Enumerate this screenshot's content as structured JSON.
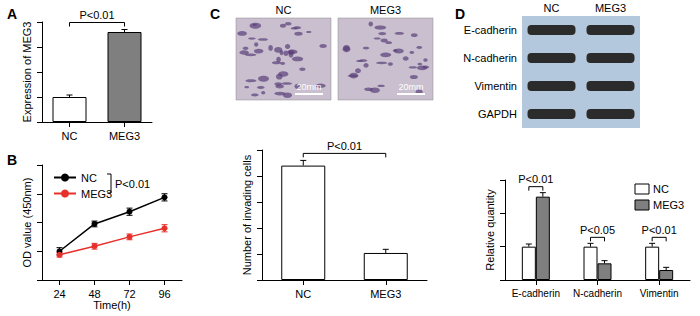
{
  "chart_data": [
    {
      "type": "bar",
      "title": "A",
      "y_label": "Expression of MEG3",
      "categories": [
        "NC",
        "MEG3"
      ],
      "values": [
        1.0,
        3.6
      ],
      "errors": [
        0.08,
        0.1
      ],
      "colors": [
        "#ffffff",
        "#7f7f7f"
      ],
      "ylim": [
        0,
        4
      ],
      "yticks": [
        0,
        1,
        2,
        3,
        4
      ],
      "tick_labels": "x",
      "grid": false,
      "annotations": [
        {
          "text": "P<0.01",
          "between": [
            "NC",
            "MEG3"
          ]
        }
      ]
    },
    {
      "type": "line",
      "title": "B",
      "x_label": "Time(h)",
      "y_label": "OD value (450nm)",
      "x": [
        24,
        48,
        72,
        96
      ],
      "series": [
        {
          "name": "NC",
          "color": "#000000",
          "marker": "circle",
          "values": [
            0.4,
            0.78,
            0.95,
            1.15
          ],
          "errors": [
            0.05,
            0.04,
            0.05,
            0.05
          ]
        },
        {
          "name": "MEG3",
          "color": "#e8302a",
          "marker": "circle",
          "values": [
            0.35,
            0.47,
            0.6,
            0.72
          ],
          "errors": [
            0.03,
            0.04,
            0.04,
            0.05
          ]
        }
      ],
      "xlim": [
        12,
        108
      ],
      "xticks": [
        24,
        48,
        72,
        96
      ],
      "ylim": [
        0,
        1.6
      ],
      "yticks": [
        0,
        0.4,
        0.8,
        1.2,
        1.6
      ],
      "tick_labels": "x",
      "grid": false,
      "legend": "upper left",
      "annotations": [
        {
          "text": "P<0.01",
          "between": [
            "NC",
            "MEG3"
          ]
        }
      ]
    },
    {
      "type": "bar",
      "title": "C",
      "y_label": "Number of invading cells",
      "categories": [
        "NC",
        "MEG3"
      ],
      "values": [
        220,
        52
      ],
      "errors": [
        10,
        7
      ],
      "colors": [
        "#ffffff",
        "#ffffff"
      ],
      "ylim": [
        0,
        250
      ],
      "yticks": [
        0,
        50,
        100,
        150,
        200,
        250
      ],
      "tick_labels": "x",
      "grid": false,
      "annotations": [
        {
          "text": "P<0.01",
          "between": [
            "NC",
            "MEG3"
          ]
        }
      ],
      "micrographs": {
        "labels": [
          "NC",
          "MEG3"
        ],
        "scale_bar": "20mm"
      }
    },
    {
      "type": "bar",
      "title": "D",
      "y_label": "Relative quantity",
      "categories": [
        "E-cadherin",
        "N-cadherin",
        "Vimentin"
      ],
      "series": [
        {
          "name": "NC",
          "color": "#ffffff",
          "values": [
            1.0,
            1.0,
            1.0
          ],
          "errors": [
            0.08,
            0.1,
            0.1
          ]
        },
        {
          "name": "MEG3",
          "color": "#7f7f7f",
          "values": [
            2.5,
            0.5,
            0.3
          ],
          "errors": [
            0.12,
            0.08,
            0.08
          ]
        }
      ],
      "ylim": [
        0,
        3
      ],
      "yticks": [
        0,
        1,
        2,
        3
      ],
      "tick_labels": "x",
      "grid": false,
      "legend": "upper right",
      "annotations": [
        {
          "text": "P<0.01",
          "category": "E-cadherin"
        },
        {
          "text": "P<0.05",
          "category": "N-cadherin"
        },
        {
          "text": "P<0.01",
          "category": "Vimentin"
        }
      ],
      "blot": {
        "lanes": [
          "NC",
          "MEG3"
        ],
        "bands": [
          "E-cadherin",
          "N-cadherin",
          "Vimentin",
          "GAPDH"
        ]
      }
    }
  ]
}
